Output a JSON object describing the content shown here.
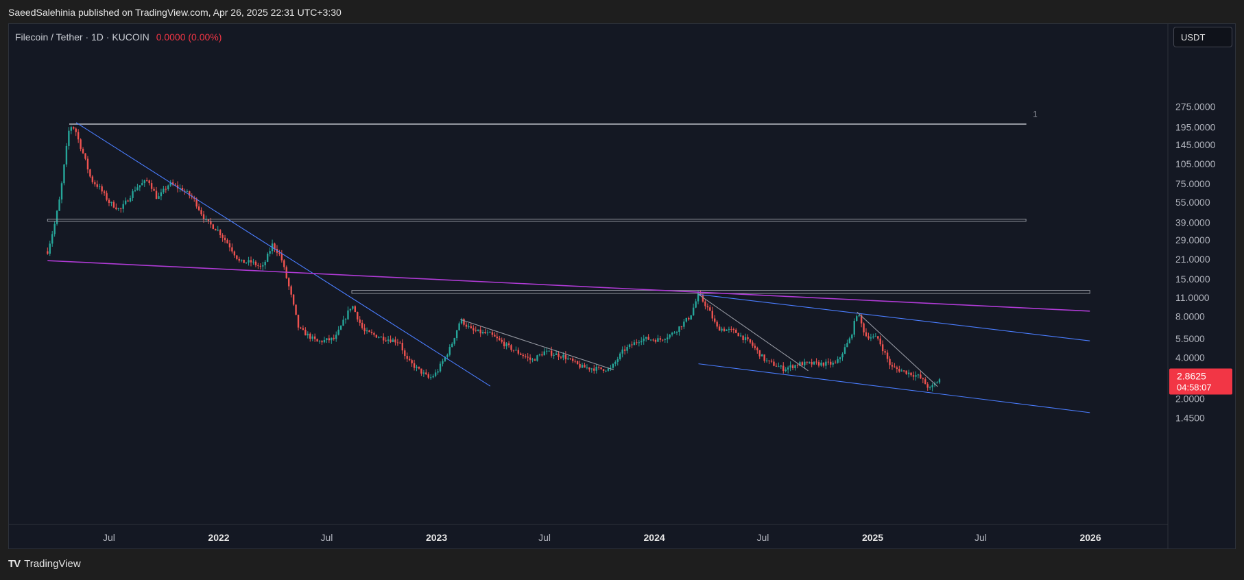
{
  "header": {
    "published": "SaeedSalehinia published on TradingView.com, Apr 26, 2025 22:31 UTC+3:30"
  },
  "legend": {
    "symbol": "Filecoin / Tether · 1D · KUCOIN",
    "change": "0.0000 (0.00%)"
  },
  "price_scale": {
    "currency": "USDT"
  },
  "price_badge": {
    "price": "2.8625",
    "countdown": "04:58:07",
    "color": "#f23645"
  },
  "footer": {
    "brand": "TradingView",
    "logo": "TV"
  },
  "colors": {
    "background": "#141823",
    "up": "#26a69a",
    "down": "#ef5350",
    "trend_blue": "#4a7dff",
    "trend_purple": "#b03bd6",
    "level_line": "#9598a1"
  },
  "chart_data": {
    "type": "candlestick",
    "symbol": "FIL/USDT",
    "timeframe": "1D",
    "exchange": "KUCOIN",
    "y_scale": "log",
    "y_ticks": [
      "275.0000",
      "195.0000",
      "145.0000",
      "105.0000",
      "75.0000",
      "55.0000",
      "39.0000",
      "29.0000",
      "21.0000",
      "15.0000",
      "11.0000",
      "8.0000",
      "5.5000",
      "4.0000",
      "2.0000",
      "1.4500"
    ],
    "x_ticks": [
      "Jul",
      "2022",
      "Jul",
      "2023",
      "Jul",
      "2024",
      "Jul",
      "2025",
      "Jul",
      "2026"
    ],
    "x_ticks_bold": [
      false,
      true,
      false,
      true,
      false,
      true,
      false,
      true,
      false,
      true
    ],
    "level_label": "1",
    "price_path": [
      [
        "2021-03-20",
        24
      ],
      [
        "2021-04-01",
        38
      ],
      [
        "2021-04-10",
        60
      ],
      [
        "2021-04-20",
        130
      ],
      [
        "2021-04-26",
        200
      ],
      [
        "2021-05-05",
        190
      ],
      [
        "2021-05-12",
        150
      ],
      [
        "2021-05-20",
        120
      ],
      [
        "2021-06-01",
        80
      ],
      [
        "2021-06-15",
        70
      ],
      [
        "2021-07-01",
        55
      ],
      [
        "2021-07-20",
        48
      ],
      [
        "2021-08-15",
        70
      ],
      [
        "2021-09-05",
        80
      ],
      [
        "2021-09-20",
        58
      ],
      [
        "2021-10-10",
        75
      ],
      [
        "2021-11-01",
        68
      ],
      [
        "2021-11-20",
        58
      ],
      [
        "2021-12-10",
        40
      ],
      [
        "2021-12-31",
        34
      ],
      [
        "2022-01-20",
        26
      ],
      [
        "2022-02-05",
        20
      ],
      [
        "2022-02-25",
        20
      ],
      [
        "2022-03-15",
        18
      ],
      [
        "2022-04-01",
        27
      ],
      [
        "2022-04-15",
        22
      ],
      [
        "2022-05-01",
        12
      ],
      [
        "2022-05-15",
        6.5
      ],
      [
        "2022-06-15",
        5.2
      ],
      [
        "2022-07-15",
        5.5
      ],
      [
        "2022-08-12",
        9.8
      ],
      [
        "2022-09-01",
        6.2
      ],
      [
        "2022-10-01",
        5.6
      ],
      [
        "2022-11-01",
        5.2
      ],
      [
        "2022-11-10",
        3.9
      ],
      [
        "2022-12-20",
        2.8
      ],
      [
        "2023-01-01",
        3.1
      ],
      [
        "2023-01-25",
        4.8
      ],
      [
        "2023-02-10",
        7.6
      ],
      [
        "2023-03-01",
        6.3
      ],
      [
        "2023-04-01",
        5.9
      ],
      [
        "2023-05-01",
        4.8
      ],
      [
        "2023-06-10",
        3.8
      ],
      [
        "2023-07-01",
        4.4
      ],
      [
        "2023-08-01",
        4.1
      ],
      [
        "2023-09-01",
        3.4
      ],
      [
        "2023-10-01",
        3.3
      ],
      [
        "2023-10-20",
        3.3
      ],
      [
        "2023-11-10",
        4.5
      ],
      [
        "2023-12-10",
        5.5
      ],
      [
        "2024-01-10",
        5.4
      ],
      [
        "2024-02-01",
        6.0
      ],
      [
        "2024-03-01",
        8.0
      ],
      [
        "2024-03-15",
        11.6
      ],
      [
        "2024-04-01",
        9.0
      ],
      [
        "2024-04-15",
        6.6
      ],
      [
        "2024-05-15",
        6.2
      ],
      [
        "2024-06-10",
        5.1
      ],
      [
        "2024-07-05",
        3.8
      ],
      [
        "2024-08-05",
        3.3
      ],
      [
        "2024-09-01",
        3.6
      ],
      [
        "2024-10-01",
        3.6
      ],
      [
        "2024-11-01",
        3.6
      ],
      [
        "2024-11-25",
        5.6
      ],
      [
        "2024-12-06",
        8.6
      ],
      [
        "2024-12-20",
        5.8
      ],
      [
        "2025-01-10",
        5.5
      ],
      [
        "2025-02-01",
        3.4
      ],
      [
        "2025-03-01",
        3.1
      ],
      [
        "2025-03-20",
        2.9
      ],
      [
        "2025-04-07",
        2.35
      ],
      [
        "2025-04-26",
        2.86
      ]
    ],
    "last_price": 2.8625,
    "drawings": [
      {
        "kind": "rect",
        "t1": "2021-04-26",
        "t2": "2025-09-15",
        "y1": 206,
        "y2": 206,
        "color": "#9598a1"
      },
      {
        "kind": "rect",
        "t1": "2021-03-20",
        "t2": "2025-09-15",
        "y1": 39.8,
        "y2": 41.2,
        "color": "#9598a1"
      },
      {
        "kind": "rect",
        "t1": "2022-08-12",
        "t2": "2025-12-31",
        "y1": 11.8,
        "y2": 12.4,
        "color": "#9598a1"
      },
      {
        "kind": "line",
        "t1": "2021-05-07",
        "y1": 210,
        "t2": "2023-04-01",
        "y2": 2.47,
        "color": "#4a7dff"
      },
      {
        "kind": "line",
        "t1": "2021-03-20",
        "y1": 20.5,
        "t2": "2025-12-31",
        "y2": 8.75,
        "color": "#b03bd6"
      },
      {
        "kind": "line",
        "t1": "2024-03-15",
        "y1": 11.6,
        "t2": "2025-12-31",
        "y2": 5.3,
        "color": "#4a7dff"
      },
      {
        "kind": "line",
        "t1": "2024-03-15",
        "y1": 3.6,
        "t2": "2025-12-31",
        "y2": 1.58,
        "color": "#4a7dff"
      },
      {
        "kind": "line",
        "t1": "2023-02-10",
        "y1": 7.6,
        "t2": "2023-10-25",
        "y2": 3.25,
        "color": "#9598a1"
      },
      {
        "kind": "line",
        "t1": "2024-03-15",
        "y1": 11.6,
        "t2": "2024-09-15",
        "y2": 3.2,
        "color": "#9598a1"
      },
      {
        "kind": "line",
        "t1": "2024-12-06",
        "y1": 8.6,
        "t2": "2025-04-20",
        "y2": 2.45,
        "color": "#9598a1"
      }
    ]
  }
}
